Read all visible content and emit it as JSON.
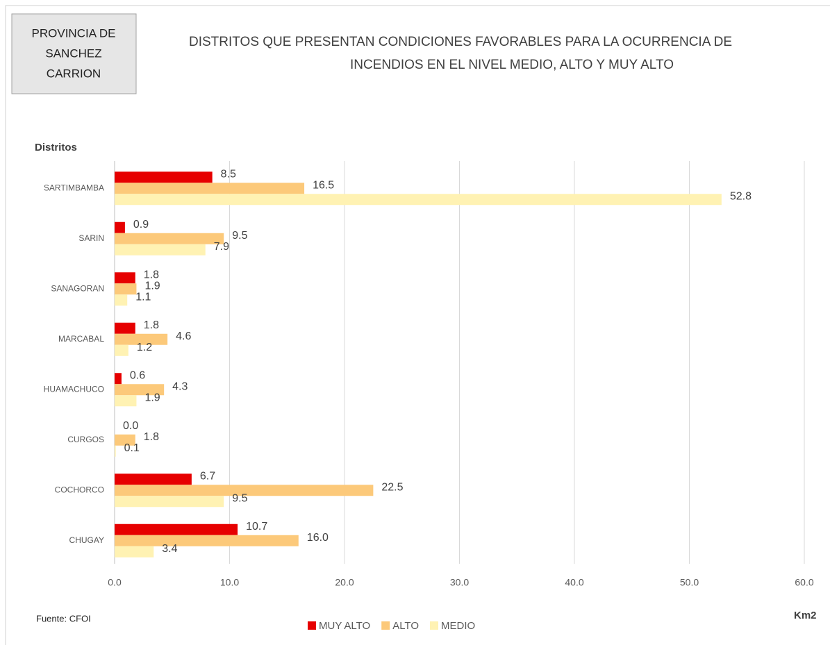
{
  "chart_data": {
    "type": "bar",
    "orientation": "horizontal",
    "province_box": [
      "PROVINCIA DE",
      "SANCHEZ",
      "CARRION"
    ],
    "title": [
      "DISTRITOS QUE PRESENTAN CONDICIONES FAVORABLES PARA LA OCURRENCIA DE",
      "INCENDIOS EN EL NIVEL MEDIO, ALTO Y MUY ALTO"
    ],
    "y_label": "Distritos",
    "x_label": "Km2",
    "source": "Fuente: CFOI",
    "categories": [
      "SARTIMBAMBA",
      "SARIN",
      "SANAGORAN",
      "MARCABAL",
      "HUAMACHUCO",
      "CURGOS",
      "COCHORCO",
      "CHUGAY"
    ],
    "series": [
      {
        "name": "MUY ALTO",
        "color": "#e60000",
        "values": [
          8.5,
          0.9,
          1.8,
          1.8,
          0.6,
          0.0,
          6.7,
          10.7
        ],
        "value_labels": [
          "8.5",
          "0.9",
          "1.8",
          "1.8",
          "0.6",
          "0.0",
          "6.7",
          "10.7"
        ]
      },
      {
        "name": "ALTO",
        "color": "#fcc97a",
        "values": [
          16.5,
          9.5,
          1.9,
          4.6,
          4.3,
          1.8,
          22.5,
          16.0
        ],
        "value_labels": [
          "16.5",
          "9.5",
          "1.9",
          "4.6",
          "4.3",
          "1.8",
          "22.5",
          "16.0"
        ]
      },
      {
        "name": "MEDIO",
        "color": "#fff2b3",
        "values": [
          52.8,
          7.9,
          1.1,
          1.2,
          1.9,
          0.1,
          9.5,
          3.4
        ],
        "value_labels": [
          "52.8",
          "7.9",
          "1.1",
          "1.2",
          "1.9",
          "0.1",
          "9.5",
          "3.4"
        ]
      }
    ],
    "xlim": [
      0,
      60
    ],
    "xticks": [
      {
        "value": 0,
        "label": "0.0"
      },
      {
        "value": 10,
        "label": "10.0"
      },
      {
        "value": 20,
        "label": "20.0"
      },
      {
        "value": 30,
        "label": "30.0"
      },
      {
        "value": 40,
        "label": "40.0"
      },
      {
        "value": 50,
        "label": "50.0"
      },
      {
        "value": 60,
        "label": "60.0"
      }
    ],
    "grid": true,
    "legend": "bottom"
  }
}
